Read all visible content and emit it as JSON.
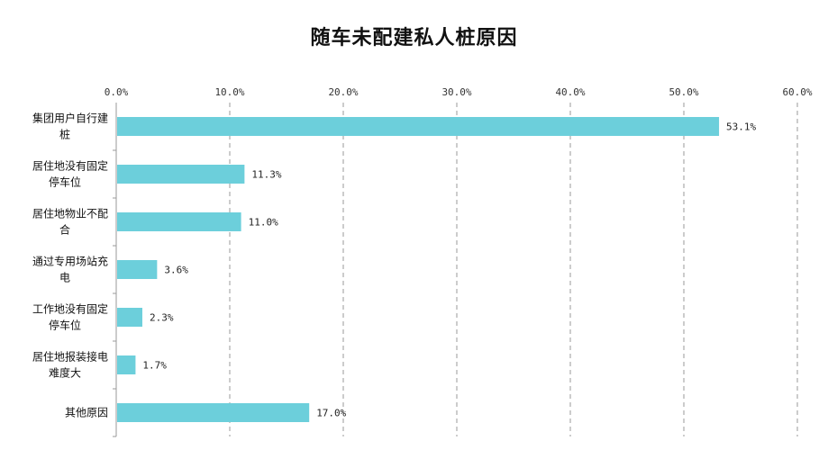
{
  "chart_data": {
    "type": "bar",
    "orientation": "horizontal",
    "title": "随车未配建私人桩原因",
    "categories": [
      [
        "集团用户自行建",
        "桩"
      ],
      [
        "居住地没有固定",
        "停车位"
      ],
      [
        "居住地物业不配",
        "合"
      ],
      [
        "通过专用场站充",
        "电"
      ],
      [
        "工作地没有固定",
        "停车位"
      ],
      [
        "居住地报装接电",
        "难度大"
      ],
      [
        "其他原因"
      ]
    ],
    "values": [
      53.1,
      11.3,
      11.0,
      3.6,
      2.3,
      1.7,
      17.0
    ],
    "value_labels": [
      "53.1%",
      "11.3%",
      "11.0%",
      "3.6%",
      "2.3%",
      "1.7%",
      "17.0%"
    ],
    "xlim": [
      0,
      60
    ],
    "x_ticks": [
      0,
      10,
      20,
      30,
      40,
      50,
      60
    ],
    "x_tick_labels": [
      "0.0%",
      "10.0%",
      "20.0%",
      "30.0%",
      "40.0%",
      "50.0%",
      "60.0%"
    ],
    "x_axis_position": "top",
    "grid": "vertical-dashed",
    "legend": "none",
    "bar_color": "#6ccfdb",
    "xlabel": "",
    "ylabel": ""
  }
}
